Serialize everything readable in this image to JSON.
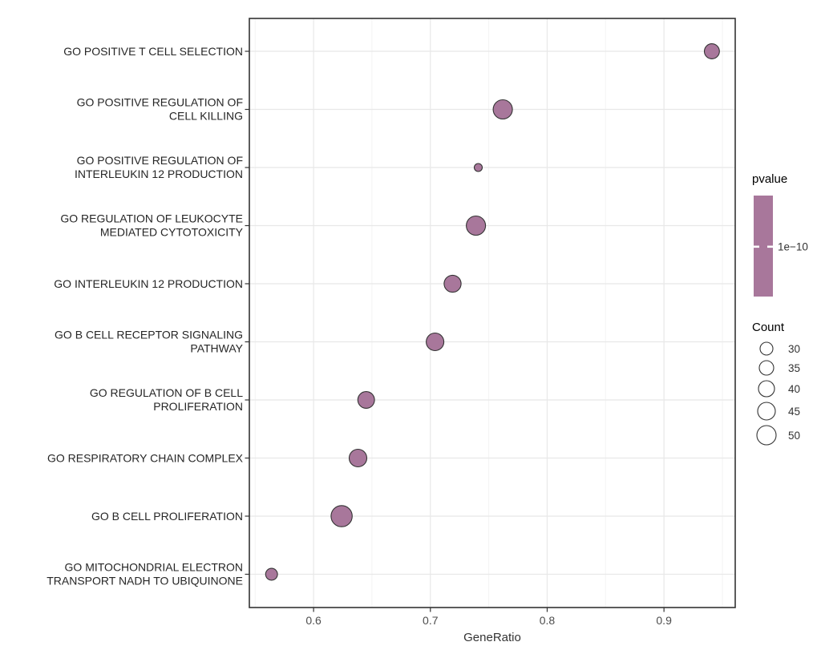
{
  "chart_data": {
    "type": "scatter",
    "title": "",
    "xlabel": "GeneRatio",
    "ylabel": "",
    "x_ticks": [
      0.6,
      0.7,
      0.8,
      0.9
    ],
    "x_tick_labels": [
      "0.6",
      "0.7",
      "0.8",
      "0.9"
    ],
    "x_minor_ticks": [
      0.55,
      0.65,
      0.75,
      0.85,
      0.95
    ],
    "xlim": [
      0.545,
      0.961
    ],
    "grid": "light gray major + minor vertical, major horizontal per category, white panel, dark border",
    "legend_position": "right",
    "points": [
      {
        "term": "GO POSITIVE T CELL SELECTION",
        "label_lines": [
          "GO POSITIVE T CELL SELECTION"
        ],
        "gene_ratio": 0.941,
        "count": 37
      },
      {
        "term": "GO POSITIVE REGULATION OF CELL KILLING",
        "label_lines": [
          "GO POSITIVE REGULATION OF",
          "CELL KILLING"
        ],
        "gene_ratio": 0.762,
        "count": 50
      },
      {
        "term": "GO POSITIVE REGULATION OF INTERLEUKIN 12 PRODUCTION",
        "label_lines": [
          "GO POSITIVE REGULATION OF",
          "INTERLEUKIN 12 PRODUCTION"
        ],
        "gene_ratio": 0.741,
        "count": 15
      },
      {
        "term": "GO REGULATION OF LEUKOCYTE MEDIATED CYTOTOXICITY",
        "label_lines": [
          "GO REGULATION OF LEUKOCYTE",
          "MEDIATED CYTOTOXICITY"
        ],
        "gene_ratio": 0.739,
        "count": 50
      },
      {
        "term": "GO INTERLEUKIN 12 PRODUCTION",
        "label_lines": [
          "GO INTERLEUKIN 12 PRODUCTION"
        ],
        "gene_ratio": 0.719,
        "count": 43
      },
      {
        "term": "GO B CELL RECEPTOR SIGNALING PATHWAY",
        "label_lines": [
          "GO B CELL RECEPTOR SIGNALING",
          "PATHWAY"
        ],
        "gene_ratio": 0.704,
        "count": 45
      },
      {
        "term": "GO REGULATION OF B CELL PROLIFERATION",
        "label_lines": [
          "GO REGULATION OF B CELL",
          "PROLIFERATION"
        ],
        "gene_ratio": 0.645,
        "count": 42
      },
      {
        "term": "GO RESPIRATORY CHAIN COMPLEX",
        "label_lines": [
          "GO RESPIRATORY CHAIN COMPLEX"
        ],
        "gene_ratio": 0.638,
        "count": 45
      },
      {
        "term": "GO B CELL PROLIFERATION",
        "label_lines": [
          "GO B CELL PROLIFERATION"
        ],
        "gene_ratio": 0.624,
        "count": 56
      },
      {
        "term": "GO MITOCHONDRIAL ELECTRON TRANSPORT NADH TO UBIQUINONE",
        "label_lines": [
          "GO MITOCHONDRIAL ELECTRON",
          "TRANSPORT NADH TO UBIQUINONE"
        ],
        "gene_ratio": 0.564,
        "count": 27
      }
    ],
    "legend_pvalue": {
      "title": "pvalue",
      "tick_label": "1e−10",
      "note": "uniform color bar, single tick near middle"
    },
    "legend_count": {
      "title": "Count",
      "entries": [
        30,
        35,
        40,
        45,
        50
      ]
    },
    "colors": {
      "dot_fill": "#a8779b",
      "dot_stroke": "#333333",
      "bar_fill": "#a8779b",
      "grid_major": "#e8e8e8",
      "grid_minor": "#f3f3f3",
      "panel_border": "#333333",
      "panel_bg": "#ffffff",
      "axis_tick": "#333333",
      "x_tick_text": "#4d4d4d",
      "y_label_text": "#262626",
      "legend_title_text": "#000000",
      "legend_text": "#333333",
      "axis_title_text": "#333333"
    }
  }
}
